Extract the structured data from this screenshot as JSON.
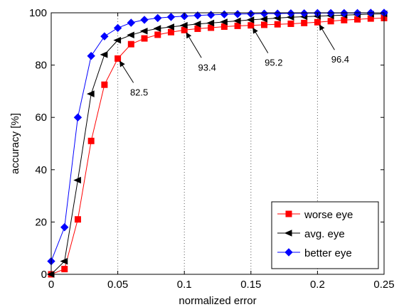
{
  "chart_data": {
    "type": "line",
    "title": "",
    "xlabel": "normalized error",
    "ylabel": "accuracy [%]",
    "xlim": [
      0,
      0.25
    ],
    "ylim": [
      0,
      100
    ],
    "xticks": [
      0,
      0.05,
      0.1,
      0.15,
      0.2,
      0.25
    ],
    "xtick_labels": [
      "0",
      "0.05",
      "0.1",
      "0.15",
      "0.2",
      "0.25"
    ],
    "yticks": [
      0,
      20,
      40,
      60,
      80,
      100
    ],
    "ytick_labels": [
      "0",
      "20",
      "40",
      "60",
      "80",
      "100"
    ],
    "grid": "vertical dotted lines at x = 0.05, 0.1, 0.15, 0.2",
    "legend_position": "bottom-right",
    "x": [
      0,
      0.01,
      0.02,
      0.03,
      0.04,
      0.05,
      0.06,
      0.07,
      0.08,
      0.09,
      0.1,
      0.11,
      0.12,
      0.13,
      0.14,
      0.15,
      0.16,
      0.17,
      0.18,
      0.19,
      0.2,
      0.21,
      0.22,
      0.23,
      0.24,
      0.25
    ],
    "series": [
      {
        "name": "worse eye",
        "color": "#ff0000",
        "marker": "square",
        "values": [
          0,
          2,
          21,
          51,
          72.5,
          82.5,
          88,
          90.2,
          91.6,
          92.6,
          93.4,
          93.9,
          94.3,
          94.7,
          95.0,
          95.2,
          95.4,
          95.6,
          95.8,
          96.1,
          96.4,
          96.8,
          97.2,
          97.5,
          97.8,
          98.0
        ]
      },
      {
        "name": "avg. eye",
        "color": "#000000",
        "marker": "triangle-left",
        "values": [
          0,
          5,
          36,
          69,
          84,
          89.5,
          91.5,
          93,
          94,
          94.6,
          95.2,
          95.7,
          96.1,
          96.5,
          96.9,
          97.3,
          97.6,
          98.0,
          98.3,
          98.5,
          98.7,
          98.9,
          99.1,
          99.3,
          99.5,
          99.6
        ]
      },
      {
        "name": "better eye",
        "color": "#0000ff",
        "marker": "diamond",
        "values": [
          5,
          18,
          60,
          83.5,
          91,
          94.2,
          96.2,
          97.3,
          98,
          98.4,
          98.7,
          99,
          99.2,
          99.4,
          99.5,
          99.6,
          99.7,
          99.7,
          99.8,
          99.8,
          99.9,
          99.9,
          99.9,
          99.9,
          100,
          100
        ]
      }
    ],
    "annotations": [
      {
        "text": "82.5",
        "x": 0.05,
        "y": 82.5
      },
      {
        "text": "93.4",
        "x": 0.1,
        "y": 93.4
      },
      {
        "text": "95.2",
        "x": 0.15,
        "y": 95.2
      },
      {
        "text": "96.4",
        "x": 0.2,
        "y": 96.4
      }
    ]
  }
}
